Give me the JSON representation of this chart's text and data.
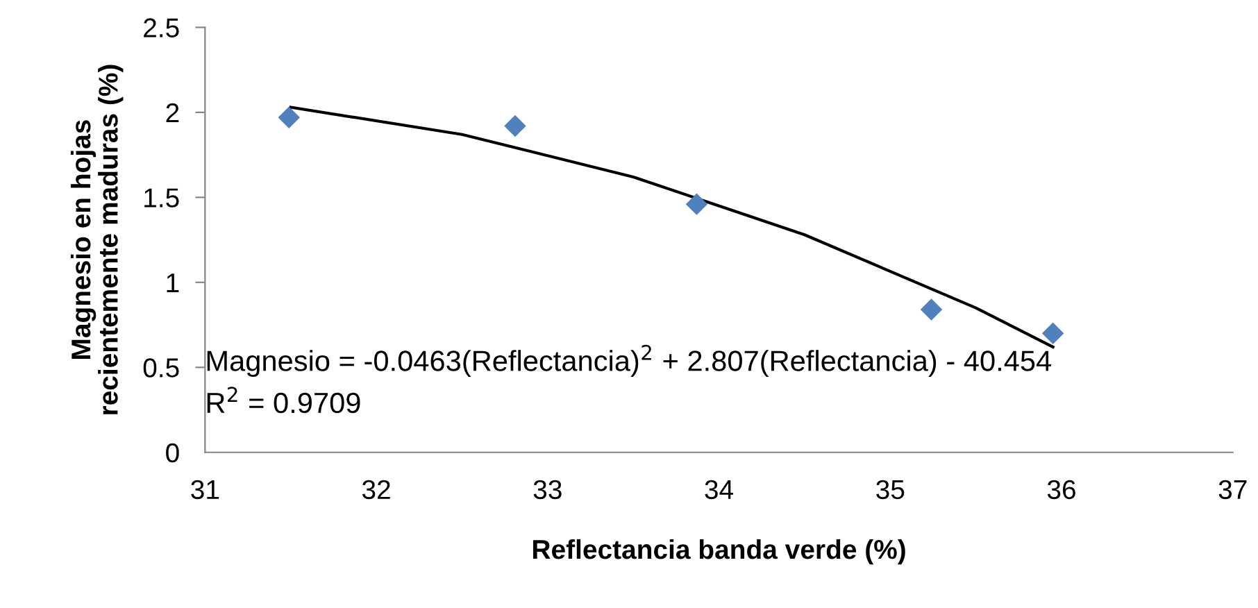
{
  "chart_data": {
    "type": "scatter",
    "xlabel": "Reflectancia banda verde (%)",
    "ylabel": "Magnesio en hojas\nrecientemente maduras (%)",
    "marker": "diamond",
    "grid": false,
    "legend": false,
    "xlim": [
      31,
      37
    ],
    "xticks": [
      31,
      32,
      33,
      34,
      35,
      36,
      37
    ],
    "ylim": [
      0,
      2.5
    ],
    "yticks": [
      0,
      0.5,
      1,
      1.5,
      2,
      2.5
    ],
    "series": [
      {
        "color": "#4f81bd",
        "x": [
          31.49,
          32.81,
          33.87,
          35.24,
          35.95
        ],
        "values": [
          1.97,
          1.92,
          1.46,
          0.84,
          0.7
        ]
      },
      {
        "type": "line",
        "color": "#000000",
        "marker": "none",
        "line_style": "solid",
        "x": [
          31.5,
          32.5,
          33.5,
          34.5,
          35.5,
          35.95
        ],
        "values": [
          2.03,
          1.87,
          1.62,
          1.28,
          0.85,
          0.62
        ]
      }
    ],
    "annotations": [
      "Magnesio = -0.0463(Reflectancia)$^{2}$ + 2.807(Reflectancia) - 40.454",
      "R$^{2}$ = 0.9709"
    ]
  }
}
